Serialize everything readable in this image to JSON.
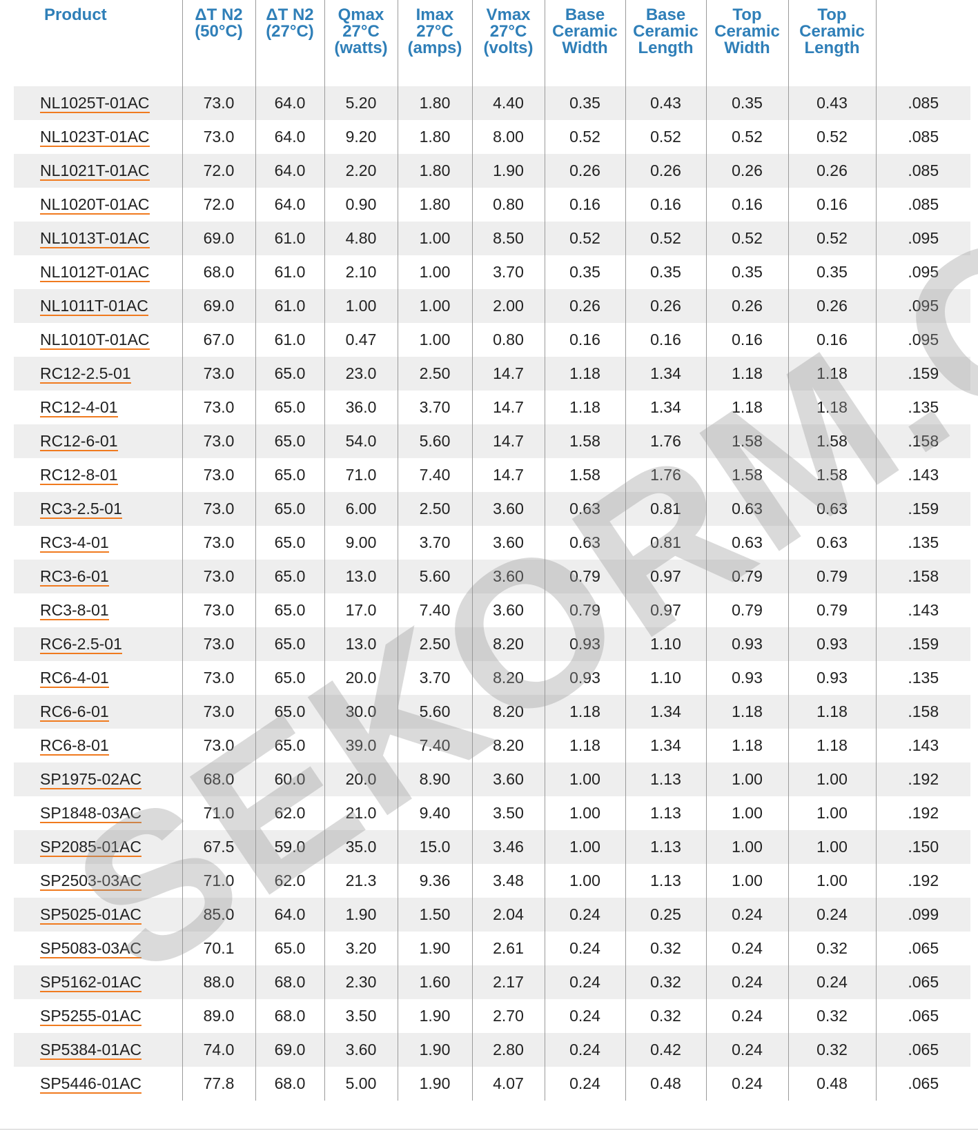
{
  "table": {
    "headers": [
      [
        "Product"
      ],
      [
        "ΔT N2",
        "(50°C)"
      ],
      [
        "ΔT N2",
        "(27°C)"
      ],
      [
        "Qmax",
        "27°C",
        "(watts)"
      ],
      [
        "Imax",
        "27°C",
        "(amps)"
      ],
      [
        "Vmax",
        "27°C",
        "(volts)"
      ],
      [
        "Base",
        "Ceramic",
        "Width"
      ],
      [
        "Base",
        "Ceramic",
        "Length"
      ],
      [
        "Top",
        "Ceramic",
        "Width"
      ],
      [
        "Top",
        "Ceramic",
        "Length"
      ],
      [
        ""
      ]
    ],
    "rows": [
      [
        "NL1025T-01AC",
        "73.0",
        "64.0",
        "5.20",
        "1.80",
        "4.40",
        "0.35",
        "0.43",
        "0.35",
        "0.43",
        ".085"
      ],
      [
        "NL1023T-01AC",
        "73.0",
        "64.0",
        "9.20",
        "1.80",
        "8.00",
        "0.52",
        "0.52",
        "0.52",
        "0.52",
        ".085"
      ],
      [
        "NL1021T-01AC",
        "72.0",
        "64.0",
        "2.20",
        "1.80",
        "1.90",
        "0.26",
        "0.26",
        "0.26",
        "0.26",
        ".085"
      ],
      [
        "NL1020T-01AC",
        "72.0",
        "64.0",
        "0.90",
        "1.80",
        "0.80",
        "0.16",
        "0.16",
        "0.16",
        "0.16",
        ".085"
      ],
      [
        "NL1013T-01AC",
        "69.0",
        "61.0",
        "4.80",
        "1.00",
        "8.50",
        "0.52",
        "0.52",
        "0.52",
        "0.52",
        ".095"
      ],
      [
        "NL1012T-01AC",
        "68.0",
        "61.0",
        "2.10",
        "1.00",
        "3.70",
        "0.35",
        "0.35",
        "0.35",
        "0.35",
        ".095"
      ],
      [
        "NL1011T-01AC",
        "69.0",
        "61.0",
        "1.00",
        "1.00",
        "2.00",
        "0.26",
        "0.26",
        "0.26",
        "0.26",
        ".095"
      ],
      [
        "NL1010T-01AC",
        "67.0",
        "61.0",
        "0.47",
        "1.00",
        "0.80",
        "0.16",
        "0.16",
        "0.16",
        "0.16",
        ".095"
      ],
      [
        "RC12-2.5-01",
        "73.0",
        "65.0",
        "23.0",
        "2.50",
        "14.7",
        "1.18",
        "1.34",
        "1.18",
        "1.18",
        ".159"
      ],
      [
        "RC12-4-01",
        "73.0",
        "65.0",
        "36.0",
        "3.70",
        "14.7",
        "1.18",
        "1.34",
        "1.18",
        "1.18",
        ".135"
      ],
      [
        "RC12-6-01",
        "73.0",
        "65.0",
        "54.0",
        "5.60",
        "14.7",
        "1.58",
        "1.76",
        "1.58",
        "1.58",
        ".158"
      ],
      [
        "RC12-8-01",
        "73.0",
        "65.0",
        "71.0",
        "7.40",
        "14.7",
        "1.58",
        "1.76",
        "1.58",
        "1.58",
        ".143"
      ],
      [
        "RC3-2.5-01",
        "73.0",
        "65.0",
        "6.00",
        "2.50",
        "3.60",
        "0.63",
        "0.81",
        "0.63",
        "0.63",
        ".159"
      ],
      [
        "RC3-4-01",
        "73.0",
        "65.0",
        "9.00",
        "3.70",
        "3.60",
        "0.63",
        "0.81",
        "0.63",
        "0.63",
        ".135"
      ],
      [
        "RC3-6-01",
        "73.0",
        "65.0",
        "13.0",
        "5.60",
        "3.60",
        "0.79",
        "0.97",
        "0.79",
        "0.79",
        ".158"
      ],
      [
        "RC3-8-01",
        "73.0",
        "65.0",
        "17.0",
        "7.40",
        "3.60",
        "0.79",
        "0.97",
        "0.79",
        "0.79",
        ".143"
      ],
      [
        "RC6-2.5-01",
        "73.0",
        "65.0",
        "13.0",
        "2.50",
        "8.20",
        "0.93",
        "1.10",
        "0.93",
        "0.93",
        ".159"
      ],
      [
        "RC6-4-01",
        "73.0",
        "65.0",
        "20.0",
        "3.70",
        "8.20",
        "0.93",
        "1.10",
        "0.93",
        "0.93",
        ".135"
      ],
      [
        "RC6-6-01",
        "73.0",
        "65.0",
        "30.0",
        "5.60",
        "8.20",
        "1.18",
        "1.34",
        "1.18",
        "1.18",
        ".158"
      ],
      [
        "RC6-8-01",
        "73.0",
        "65.0",
        "39.0",
        "7.40",
        "8.20",
        "1.18",
        "1.34",
        "1.18",
        "1.18",
        ".143"
      ],
      [
        "SP1975-02AC",
        "68.0",
        "60.0",
        "20.0",
        "8.90",
        "3.60",
        "1.00",
        "1.13",
        "1.00",
        "1.00",
        ".192"
      ],
      [
        "SP1848-03AC",
        "71.0",
        "62.0",
        "21.0",
        "9.40",
        "3.50",
        "1.00",
        "1.13",
        "1.00",
        "1.00",
        ".192"
      ],
      [
        "SP2085-01AC",
        "67.5",
        "59.0",
        "35.0",
        "15.0",
        "3.46",
        "1.00",
        "1.13",
        "1.00",
        "1.00",
        ".150"
      ],
      [
        "SP2503-03AC",
        "71.0",
        "62.0",
        "21.3",
        "9.36",
        "3.48",
        "1.00",
        "1.13",
        "1.00",
        "1.00",
        ".192"
      ],
      [
        "SP5025-01AC",
        "85.0",
        "64.0",
        "1.90",
        "1.50",
        "2.04",
        "0.24",
        "0.25",
        "0.24",
        "0.24",
        ".099"
      ],
      [
        "SP5083-03AC",
        "70.1",
        "65.0",
        "3.20",
        "1.90",
        "2.61",
        "0.24",
        "0.32",
        "0.24",
        "0.32",
        ".065"
      ],
      [
        "SP5162-01AC",
        "88.0",
        "68.0",
        "2.30",
        "1.60",
        "2.17",
        "0.24",
        "0.32",
        "0.24",
        "0.24",
        ".065"
      ],
      [
        "SP5255-01AC",
        "89.0",
        "68.0",
        "3.50",
        "1.90",
        "2.70",
        "0.24",
        "0.32",
        "0.24",
        "0.32",
        ".065"
      ],
      [
        "SP5384-01AC",
        "74.0",
        "69.0",
        "3.60",
        "1.90",
        "2.80",
        "0.24",
        "0.42",
        "0.24",
        "0.32",
        ".065"
      ],
      [
        "SP5446-01AC",
        "77.8",
        "68.0",
        "5.00",
        "1.90",
        "4.07",
        "0.24",
        "0.48",
        "0.24",
        "0.48",
        ".065"
      ]
    ]
  },
  "watermark": "SEKORM.COM",
  "colors": {
    "header_text": "#2f7fb8",
    "link_underline": "#f07a1e",
    "stripe": "#eeeeee"
  }
}
